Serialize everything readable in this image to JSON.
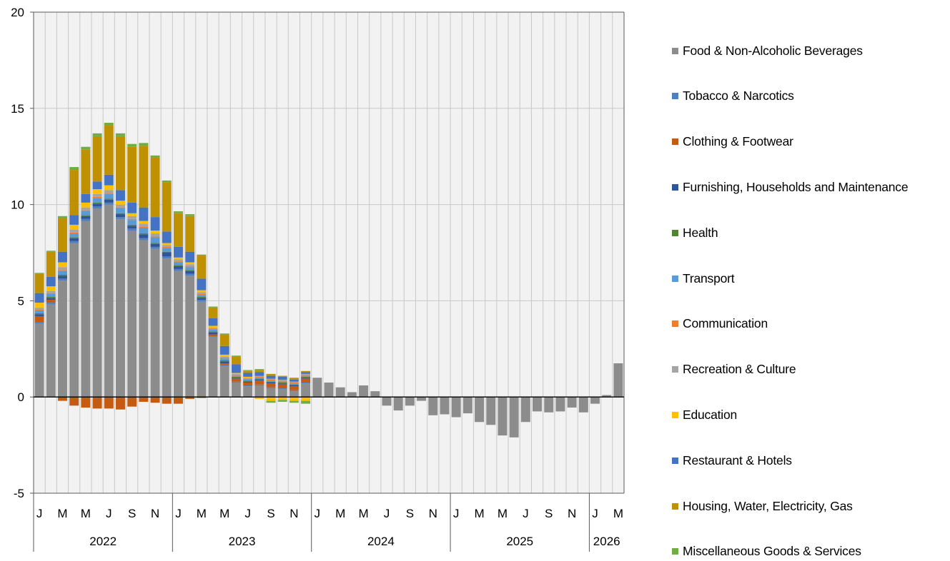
{
  "chart_data": {
    "type": "bar",
    "stacked": true,
    "title": "",
    "xlabel": "",
    "ylabel": "",
    "ylim": [
      -5,
      20
    ],
    "yticks": [
      -5,
      0,
      5,
      10,
      15,
      20
    ],
    "grid": true,
    "legend_position": "right",
    "month_tick_labels": [
      "J",
      "M",
      "M",
      "J",
      "S",
      "N",
      "J",
      "M",
      "M",
      "J",
      "S",
      "N",
      "J",
      "M",
      "M",
      "J",
      "S",
      "N",
      "J",
      "M",
      "M",
      "J",
      "S",
      "N",
      "J",
      "M"
    ],
    "year_labels": [
      "2022",
      "2023",
      "2024",
      "2025",
      "2026"
    ],
    "year_month_counts": [
      12,
      12,
      12,
      12,
      3
    ],
    "series": [
      {
        "name": "Food & Non-Alcoholic Beverages",
        "color": "#8c8c8c",
        "values": [
          3.8,
          4.8,
          6.05,
          8.0,
          9.15,
          9.8,
          10.0,
          9.25,
          8.65,
          8.15,
          7.7,
          7.2,
          6.55,
          6.3,
          4.95,
          3.1,
          1.6,
          0.75,
          0.55,
          0.6,
          0.45,
          0.4,
          0.3,
          0.7,
          1.0,
          0.75,
          0.5,
          0.25,
          0.6,
          0.3,
          -0.45,
          -0.7,
          -0.45,
          -0.2,
          -0.95,
          -0.9,
          -1.05,
          -0.85,
          -1.3,
          -1.45,
          -2.0,
          -2.1,
          -1.3,
          -0.75,
          -0.8,
          -0.75,
          -0.55,
          -0.8,
          -0.35,
          0.1,
          1.75
        ]
      },
      {
        "name": "Tobacco & Narcotics",
        "color": "#4e81bd",
        "values": [
          0.1,
          0.1,
          0.1,
          0.1,
          0.1,
          0.1,
          0.1,
          0.1,
          0.1,
          0.1,
          0.1,
          0.1,
          0.1,
          0.1,
          0.1,
          0.05,
          0.05,
          0.05,
          0.05,
          0.05,
          0.05,
          0.05,
          0.05,
          0.05,
          0,
          0,
          0,
          0,
          0,
          0,
          0,
          0,
          0,
          0,
          0,
          0,
          0,
          0,
          0,
          0,
          0,
          0,
          0,
          0,
          0,
          0,
          0,
          0,
          0,
          0,
          0
        ]
      },
      {
        "name": "Clothing & Footwear",
        "color": "#c55a11",
        "values": [
          0.3,
          0.15,
          -0.2,
          -0.45,
          -0.55,
          -0.6,
          -0.6,
          -0.65,
          -0.5,
          -0.25,
          -0.3,
          -0.35,
          -0.35,
          -0.1,
          -0.05,
          0.1,
          0.1,
          0.15,
          0.15,
          0.2,
          0.2,
          0.2,
          0.2,
          0.2,
          0,
          0,
          0,
          0,
          0,
          0,
          0,
          0,
          0,
          0,
          0,
          0,
          0,
          0,
          0,
          0,
          0,
          0,
          0,
          0,
          0,
          0,
          0,
          0,
          0,
          0,
          0
        ]
      },
      {
        "name": "Furnishing, Households and Maintenance",
        "color": "#2f5597",
        "values": [
          0.1,
          0.1,
          0.15,
          0.15,
          0.15,
          0.15,
          0.15,
          0.15,
          0.15,
          0.2,
          0.15,
          0.2,
          0.15,
          0.15,
          0.1,
          0.1,
          0.1,
          0.05,
          0.05,
          0.05,
          0.05,
          0.05,
          0.05,
          0.05,
          0,
          0,
          0,
          0,
          0,
          0,
          0,
          0,
          0,
          0,
          0,
          0,
          0,
          0,
          0,
          0,
          0,
          0,
          0,
          0,
          0,
          0,
          0,
          0,
          0,
          0,
          0
        ]
      },
      {
        "name": "Health",
        "color": "#548235",
        "values": [
          0.05,
          0.05,
          0.05,
          0.05,
          0.05,
          0.05,
          0.05,
          0.05,
          0.05,
          0.05,
          0.05,
          0.05,
          0.05,
          0.05,
          0.05,
          0.05,
          0.05,
          0.05,
          0.05,
          0.05,
          0.05,
          0.05,
          0.05,
          0.05,
          0,
          0,
          0,
          0,
          0,
          0,
          0,
          0,
          0,
          0,
          0,
          0,
          0,
          0,
          0,
          0,
          0,
          0,
          0,
          0,
          0,
          0,
          0,
          0,
          0,
          0,
          0
        ]
      },
      {
        "name": "Transport",
        "color": "#5b9bd5",
        "values": [
          0.15,
          0.15,
          0.2,
          0.2,
          0.2,
          0.25,
          0.25,
          0.25,
          0.25,
          0.3,
          0.3,
          0.2,
          0.15,
          0.15,
          0.1,
          0.1,
          0.1,
          0.05,
          0.05,
          0.05,
          0.05,
          0.05,
          0.05,
          0.05,
          0,
          0,
          0,
          0,
          0,
          0,
          0,
          0,
          0,
          0,
          0,
          0,
          0,
          0,
          0,
          0,
          0,
          0,
          0,
          0,
          0,
          0,
          0,
          0,
          0,
          0,
          0
        ]
      },
      {
        "name": "Communication",
        "color": "#ed7d31",
        "values": [
          0.05,
          0.05,
          0.05,
          0.05,
          0.05,
          0.05,
          0.05,
          0.05,
          0.05,
          0.05,
          0.05,
          0.05,
          0.05,
          0.05,
          0.05,
          0.05,
          0.05,
          0.05,
          0.05,
          0.05,
          0.05,
          0.05,
          0.05,
          0.05,
          0,
          0,
          0,
          0,
          0,
          0,
          0,
          0,
          0,
          0,
          0,
          0,
          0,
          0,
          0,
          0,
          0,
          0,
          0,
          0,
          0,
          0,
          0,
          0,
          0,
          0,
          0
        ]
      },
      {
        "name": "Recreation & Culture",
        "color": "#a5a5a5",
        "values": [
          0.1,
          0.1,
          0.15,
          0.15,
          0.15,
          0.15,
          0.15,
          0.15,
          0.15,
          0.15,
          0.15,
          0.1,
          0.1,
          0.1,
          0.1,
          0.05,
          0.05,
          0.05,
          0.05,
          0.05,
          0.05,
          0.05,
          0.05,
          0.05,
          0,
          0,
          0,
          0,
          0,
          0,
          0,
          0,
          0,
          0,
          0,
          0,
          0,
          0,
          0,
          0,
          0,
          0,
          0,
          0,
          0,
          0,
          0,
          0,
          0,
          0,
          0
        ]
      },
      {
        "name": "Education",
        "color": "#ffc000",
        "values": [
          0.25,
          0.25,
          0.25,
          0.25,
          0.25,
          0.25,
          0.25,
          0.2,
          0.15,
          0.15,
          0.15,
          0.1,
          0.1,
          0.1,
          0.1,
          0.1,
          0.1,
          0.05,
          0.05,
          -0.1,
          -0.2,
          -0.15,
          -0.2,
          -0.2,
          0,
          0,
          0,
          0,
          0,
          0,
          0,
          0,
          0,
          0,
          0,
          0,
          0,
          0,
          0,
          0,
          0,
          0,
          0,
          0,
          0,
          0,
          0,
          0,
          0,
          0,
          0
        ]
      },
      {
        "name": "Restaurant & Hotels",
        "color": "#4472c4",
        "values": [
          0.5,
          0.5,
          0.55,
          0.5,
          0.45,
          0.4,
          0.55,
          0.55,
          0.55,
          0.7,
          0.7,
          0.6,
          0.55,
          0.55,
          0.6,
          0.4,
          0.45,
          0.45,
          0.2,
          0.2,
          0.15,
          0.15,
          0.1,
          0.1,
          0,
          0,
          0,
          0,
          0,
          0,
          0,
          0,
          0,
          0,
          0,
          0,
          0,
          0,
          0,
          0,
          0,
          0,
          0,
          0,
          0,
          0,
          0,
          0,
          0,
          0,
          0
        ]
      },
      {
        "name": "Housing, Water, Electricity, Gas",
        "color": "#bf9000",
        "values": [
          1.0,
          1.3,
          1.75,
          2.35,
          2.3,
          2.35,
          2.55,
          2.8,
          2.9,
          3.2,
          3.1,
          2.55,
          1.75,
          1.85,
          1.2,
          0.55,
          0.6,
          0.4,
          0.1,
          0.1,
          0.1,
          0.05,
          0.1,
          0.05,
          0,
          0,
          0,
          0,
          0,
          0,
          0,
          0,
          0,
          0,
          0,
          0,
          0,
          0,
          0,
          0,
          0,
          0,
          0,
          0,
          0,
          0,
          0,
          0,
          0,
          0,
          0
        ]
      },
      {
        "name": "Miscellaneous Goods & Services",
        "color": "#70ad47",
        "values": [
          0.05,
          0.05,
          0.1,
          0.15,
          0.15,
          0.15,
          0.15,
          0.15,
          0.15,
          0.15,
          0.1,
          0.1,
          0.1,
          0.1,
          0.05,
          0.05,
          0.05,
          0.05,
          0.05,
          0.05,
          -0.1,
          -0.1,
          -0.1,
          -0.15,
          0,
          0,
          0,
          0,
          0,
          0,
          0,
          0,
          0,
          0,
          0,
          0,
          0,
          0,
          0,
          0,
          0,
          0,
          0,
          0,
          0,
          0,
          0,
          0,
          0,
          0,
          0
        ]
      }
    ]
  }
}
